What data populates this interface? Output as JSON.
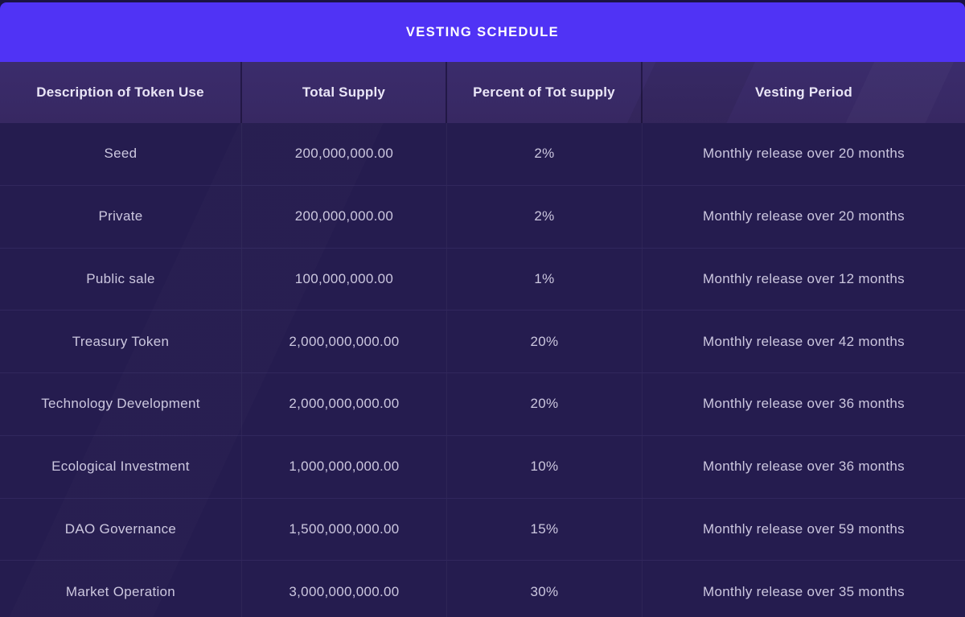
{
  "title": "VESTING SCHEDULE",
  "colors": {
    "title_bar": "#5033f5",
    "header_bg": "#392a66",
    "row_bg": "#251c4f",
    "outer_bg": "#1b1343",
    "header_text": "#eae6f7",
    "row_text": "#ccc7df",
    "title_text": "#ffffff"
  },
  "table": {
    "columns": [
      "Description of Token Use",
      "Total Supply",
      "Percent of Tot supply",
      "Vesting Period"
    ],
    "rows": [
      {
        "use": "Seed",
        "total_supply": "200,000,000.00",
        "percent": "2%",
        "vesting": "Monthly release over 20 months"
      },
      {
        "use": "Private",
        "total_supply": "200,000,000.00",
        "percent": "2%",
        "vesting": "Monthly release over 20 months"
      },
      {
        "use": "Public sale",
        "total_supply": "100,000,000.00",
        "percent": "1%",
        "vesting": "Monthly release over 12 months"
      },
      {
        "use": "Treasury Token",
        "total_supply": "2,000,000,000.00",
        "percent": "20%",
        "vesting": "Monthly release over 42 months"
      },
      {
        "use": "Technology Development",
        "total_supply": "2,000,000,000.00",
        "percent": "20%",
        "vesting": "Monthly release over 36 months"
      },
      {
        "use": "Ecological Investment",
        "total_supply": "1,000,000,000.00",
        "percent": "10%",
        "vesting": "Monthly release over 36 months"
      },
      {
        "use": "DAO Governance",
        "total_supply": "1,500,000,000.00",
        "percent": "15%",
        "vesting": "Monthly release over 59 months"
      },
      {
        "use": "Market Operation",
        "total_supply": "3,000,000,000.00",
        "percent": "30%",
        "vesting": "Monthly release over 35 months"
      }
    ]
  },
  "chart_data": {
    "type": "table",
    "title": "VESTING SCHEDULE",
    "columns": [
      "Description of Token Use",
      "Total Supply",
      "Percent of Tot supply",
      "Vesting Period"
    ],
    "rows": [
      [
        "Seed",
        "200,000,000.00",
        "2%",
        "Monthly release over 20 months"
      ],
      [
        "Private",
        "200,000,000.00",
        "2%",
        "Monthly release over 20 months"
      ],
      [
        "Public sale",
        "100,000,000.00",
        "1%",
        "Monthly release over 12 months"
      ],
      [
        "Treasury Token",
        "2,000,000,000.00",
        "20%",
        "Monthly release over 42 months"
      ],
      [
        "Technology Development",
        "2,000,000,000.00",
        "20%",
        "Monthly release over 36 months"
      ],
      [
        "Ecological Investment",
        "1,000,000,000.00",
        "10%",
        "Monthly release over 36 months"
      ],
      [
        "DAO Governance",
        "1,500,000,000.00",
        "15%",
        "Monthly release over 59 months"
      ],
      [
        "Market Operation",
        "3,000,000,000.00",
        "30%",
        "Monthly release over 35 months"
      ]
    ],
    "total_supply_values": [
      200000000,
      200000000,
      100000000,
      2000000000,
      2000000000,
      1000000000,
      1500000000,
      3000000000
    ],
    "percent_values": [
      2,
      2,
      1,
      20,
      20,
      10,
      15,
      30
    ],
    "vesting_months": [
      20,
      20,
      12,
      42,
      36,
      36,
      59,
      35
    ]
  }
}
